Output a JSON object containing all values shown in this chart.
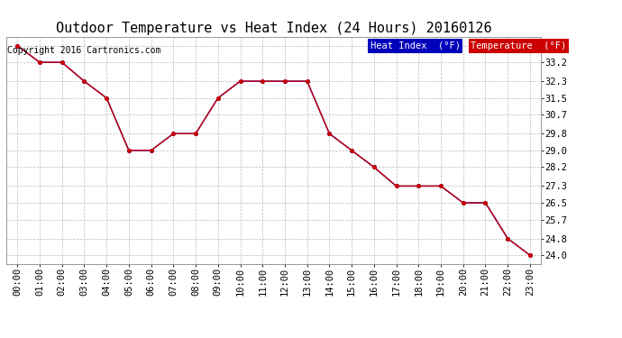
{
  "title": "Outdoor Temperature vs Heat Index (24 Hours) 20160126",
  "copyright_text": "Copyright 2016 Cartronics.com",
  "x_labels": [
    "00:00",
    "01:00",
    "02:00",
    "03:00",
    "04:00",
    "05:00",
    "06:00",
    "07:00",
    "08:00",
    "09:00",
    "10:00",
    "11:00",
    "12:00",
    "13:00",
    "14:00",
    "15:00",
    "16:00",
    "17:00",
    "18:00",
    "19:00",
    "20:00",
    "21:00",
    "22:00",
    "23:00"
  ],
  "temperature": [
    34.0,
    33.2,
    33.2,
    32.3,
    31.5,
    29.0,
    29.0,
    29.8,
    29.8,
    31.5,
    32.3,
    32.3,
    32.3,
    32.3,
    29.8,
    29.0,
    28.2,
    27.3,
    27.3,
    27.3,
    26.5,
    26.5,
    24.8,
    24.0
  ],
  "heat_index": [
    34.0,
    33.2,
    33.2,
    32.3,
    31.5,
    29.0,
    29.0,
    29.8,
    29.8,
    31.5,
    32.3,
    32.3,
    32.3,
    32.3,
    29.8,
    29.0,
    28.2,
    27.3,
    27.3,
    27.3,
    26.5,
    26.5,
    24.8,
    24.0
  ],
  "ylim": [
    23.6,
    34.4
  ],
  "yticks": [
    24.0,
    24.8,
    25.7,
    26.5,
    27.3,
    28.2,
    29.0,
    29.8,
    30.7,
    31.5,
    32.3,
    33.2,
    34.0
  ],
  "temp_color": "#cc0000",
  "heat_index_color": "#0000cc",
  "heat_index_legend_bg": "#0000bb",
  "temp_legend_bg": "#cc0000",
  "legend_text_color": "#ffffff",
  "grid_color": "#bbbbbb",
  "background_color": "#ffffff",
  "title_fontsize": 11,
  "axis_fontsize": 7.5,
  "copyright_fontsize": 7,
  "hi_label": "Heat Index  (°F)",
  "temp_label": "Temperature  (°F)"
}
